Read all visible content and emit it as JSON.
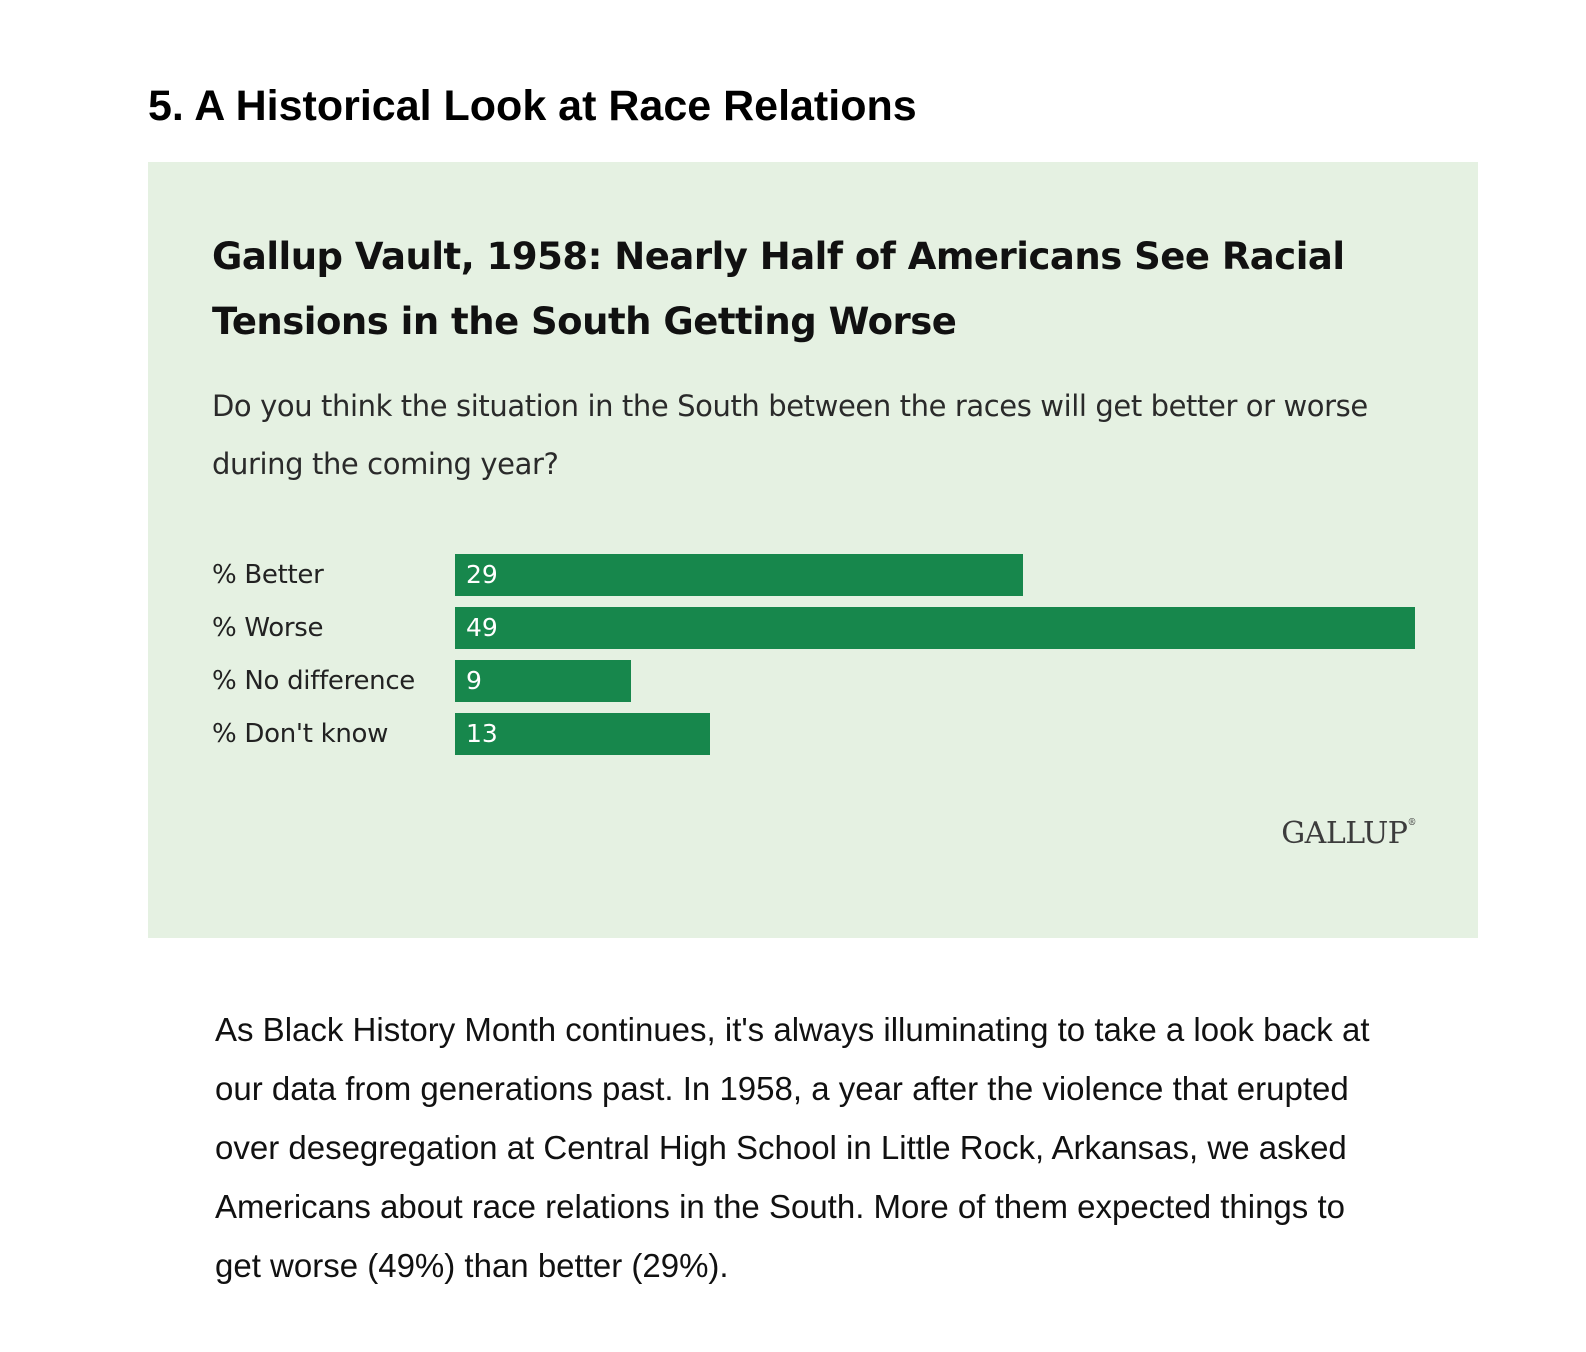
{
  "article": {
    "section_heading": "5. A Historical Look at Race Relations",
    "body_text": "As Black History Month continues, it's always illuminating to take a look back at our data from generations past. In 1958, a year after the violence that erupted over desegregation at Central High School in Little Rock, Arkansas, we asked Americans about race relations in the South. More of them expected things to get worse (49%) than better (29%)."
  },
  "chart_data": {
    "type": "bar",
    "orientation": "horizontal",
    "title": "Gallup Vault, 1958: Nearly Half of Americans See Racial Tensions in the South Getting Worse",
    "subtitle": "Do you think the situation in the South between the races will get better or worse during the coming year?",
    "categories": [
      "% Better",
      "% Worse",
      "% No difference",
      "% Don't know"
    ],
    "values": [
      29,
      49,
      9,
      13
    ],
    "value_labels": [
      "29",
      "49",
      "9",
      "13"
    ],
    "xlim": [
      0,
      49
    ],
    "grid": false,
    "legend": "none",
    "bar_color": "#17874c",
    "background_color": "#e5f1e2",
    "source_logo": "GALLUP"
  }
}
